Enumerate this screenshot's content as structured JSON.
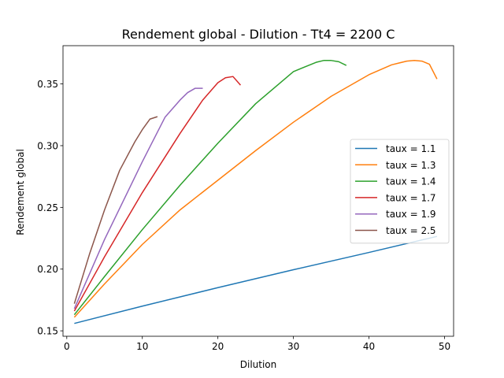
{
  "chart_data": {
    "type": "line",
    "title": "Rendement global - Dilution - Tt4 = 2200 C",
    "xlabel": "Dilution",
    "ylabel": "Rendement global",
    "xlim": [
      -0.5,
      51.2
    ],
    "ylim": [
      0.1456,
      0.381
    ],
    "xticks": [
      0,
      10,
      20,
      30,
      40,
      50
    ],
    "yticks": [
      0.15,
      0.2,
      0.25,
      0.3,
      0.35
    ],
    "ytick_labels": [
      "0.15",
      "0.20",
      "0.25",
      "0.30",
      "0.35"
    ],
    "grid": false,
    "legend_position": "center-right",
    "series": [
      {
        "name": "taux = 1.1",
        "color": "#1f77b4",
        "x": [
          1,
          10,
          20,
          30,
          40,
          49
        ],
        "y": [
          0.156,
          0.17,
          0.185,
          0.1995,
          0.2135,
          0.2265
        ]
      },
      {
        "name": "taux = 1.3",
        "color": "#ff7f0e",
        "x": [
          1,
          5,
          10,
          15,
          20,
          25,
          30,
          35,
          40,
          43,
          45,
          46,
          47,
          48,
          49
        ],
        "y": [
          0.161,
          0.188,
          0.22,
          0.248,
          0.272,
          0.296,
          0.319,
          0.34,
          0.3575,
          0.3655,
          0.3685,
          0.369,
          0.3685,
          0.366,
          0.354
        ]
      },
      {
        "name": "taux = 1.4",
        "color": "#2ca02c",
        "x": [
          1,
          5,
          10,
          15,
          20,
          25,
          30,
          33,
          34,
          35,
          36,
          37
        ],
        "y": [
          0.163,
          0.194,
          0.232,
          0.268,
          0.302,
          0.334,
          0.36,
          0.3675,
          0.369,
          0.369,
          0.368,
          0.365
        ]
      },
      {
        "name": "taux = 1.7",
        "color": "#d62728",
        "x": [
          1,
          5,
          10,
          15,
          18,
          20,
          21,
          22,
          23
        ],
        "y": [
          0.166,
          0.21,
          0.262,
          0.31,
          0.337,
          0.351,
          0.355,
          0.356,
          0.349
        ]
      },
      {
        "name": "taux = 1.9",
        "color": "#9467bd",
        "x": [
          1,
          5,
          10,
          13,
          15,
          16,
          17,
          18
        ],
        "y": [
          0.168,
          0.224,
          0.287,
          0.323,
          0.337,
          0.343,
          0.3465,
          0.3465
        ]
      },
      {
        "name": "taux = 2.5",
        "color": "#8c564b",
        "x": [
          1,
          3,
          5,
          7,
          9,
          10,
          11,
          12
        ],
        "y": [
          0.172,
          0.212,
          0.248,
          0.28,
          0.303,
          0.313,
          0.3215,
          0.3235
        ]
      }
    ]
  }
}
